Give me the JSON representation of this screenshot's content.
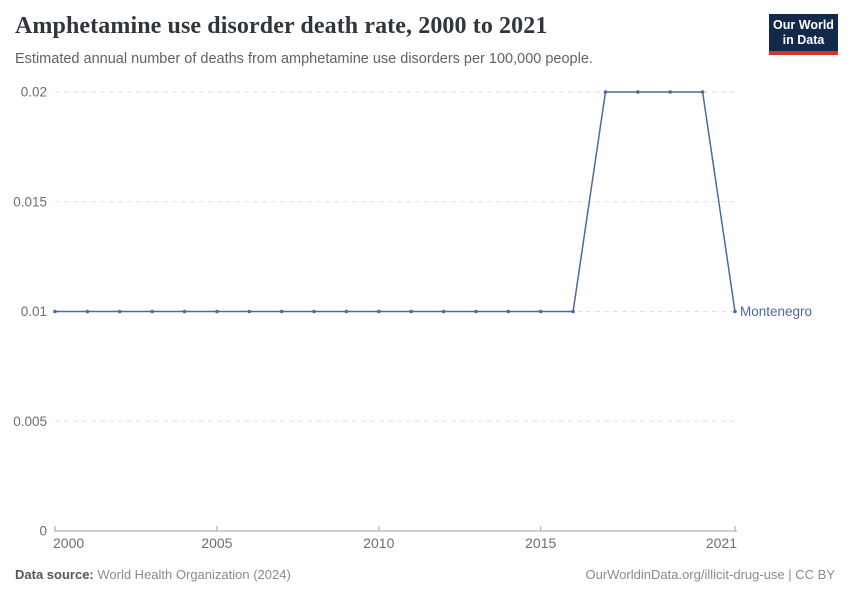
{
  "header": {
    "title": "Amphetamine use disorder death rate, 2000 to 2021",
    "subtitle": "Estimated annual number of deaths from amphetamine use disorders per 100,000 people.",
    "logo": {
      "line1": "Our World",
      "line2": "in Data",
      "bg_color": "#12294b",
      "bar_color": "#d3352b"
    }
  },
  "chart_data": {
    "type": "line",
    "title": "Amphetamine use disorder death rate, 2000 to 2021",
    "xlabel": "",
    "ylabel": "",
    "xlim": [
      2000,
      2021
    ],
    "ylim": [
      0,
      0.02
    ],
    "xticks": [
      2000,
      2005,
      2010,
      2015,
      2021
    ],
    "yticks": [
      0,
      0.005,
      0.01,
      0.015,
      0.02
    ],
    "ytick_labels": [
      "0",
      "0.005",
      "0.01",
      "0.015",
      "0.02"
    ],
    "grid": "horizontal-dashed",
    "legend_position": "end-of-line-label",
    "series": [
      {
        "name": "Montenegro",
        "color": "#4c6a9c",
        "x": [
          2000,
          2001,
          2002,
          2003,
          2004,
          2005,
          2006,
          2007,
          2008,
          2009,
          2010,
          2011,
          2012,
          2013,
          2014,
          2015,
          2016,
          2017,
          2018,
          2019,
          2020,
          2021
        ],
        "values": [
          0.01,
          0.01,
          0.01,
          0.01,
          0.01,
          0.01,
          0.01,
          0.01,
          0.01,
          0.01,
          0.01,
          0.01,
          0.01,
          0.01,
          0.01,
          0.01,
          0.01,
          0.02,
          0.02,
          0.02,
          0.02,
          0.01
        ]
      }
    ]
  },
  "footer": {
    "source_label": "Data source:",
    "source_value": " World Health Organization (2024)",
    "credit": "OurWorldinData.org/illicit-drug-use | CC BY"
  }
}
